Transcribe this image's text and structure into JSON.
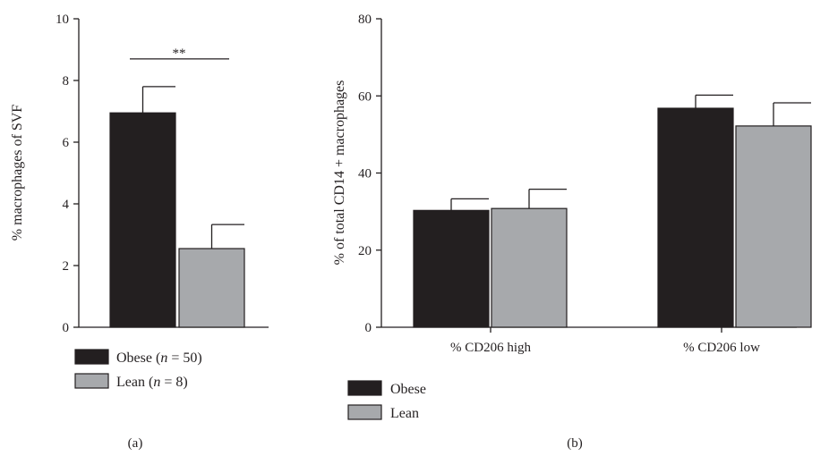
{
  "colors": {
    "obese": "#231f20",
    "lean": "#a7a9ac",
    "axis": "#231f20"
  },
  "chart_data": [
    {
      "type": "bar",
      "panel_label": "(a)",
      "ylabel": "% macrophages of SVF",
      "ylim": [
        0,
        10
      ],
      "yticks": [
        "0",
        "2",
        "4",
        "6",
        "8",
        "10"
      ],
      "series": [
        {
          "name": "Obese",
          "value": 6.95,
          "error": 0.85
        },
        {
          "name": "Lean",
          "value": 2.55,
          "error": 0.78
        }
      ],
      "significance": {
        "label": "**",
        "y": 8.7
      },
      "legend": [
        {
          "series": "Obese",
          "prefix": "Obese (",
          "italic": "n",
          "suffix": " = 50)"
        },
        {
          "series": "Lean",
          "prefix": "Lean (",
          "italic": "n",
          "suffix": " = 8)"
        }
      ]
    },
    {
      "type": "bar",
      "panel_label": "(b)",
      "ylabel": "% of total CD14 + macrophages",
      "ylim": [
        0,
        80
      ],
      "yticks": [
        "0",
        "20",
        "40",
        "60",
        "80"
      ],
      "categories": [
        "% CD206 high",
        "% CD206 low"
      ],
      "series": [
        {
          "name": "Obese",
          "values": [
            30.3,
            56.8
          ],
          "errors": [
            3.0,
            3.4
          ]
        },
        {
          "name": "Lean",
          "values": [
            30.8,
            52.2
          ],
          "errors": [
            5.0,
            6.0
          ]
        }
      ],
      "legend": [
        {
          "label": "Obese"
        },
        {
          "label": "Lean"
        }
      ]
    }
  ]
}
